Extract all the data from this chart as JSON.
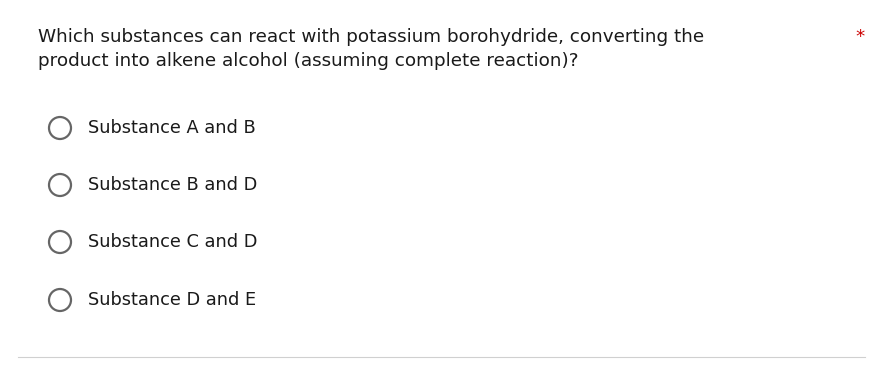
{
  "question_line1": "Which substances can react with potassium borohydride, converting the",
  "question_line2": "product into alkene alcohol (assuming complete reaction)?",
  "asterisk": "*",
  "options": [
    "Substance A and B",
    "Substance B and D",
    "Substance C and D",
    "Substance D and E"
  ],
  "background_color": "#ffffff",
  "border_color": "#d0d0d0",
  "text_color": "#1a1a1a",
  "asterisk_color": "#cc0000",
  "question_fontsize": 13.2,
  "option_fontsize": 12.8,
  "circle_color": "#666666",
  "circle_linewidth": 1.6
}
